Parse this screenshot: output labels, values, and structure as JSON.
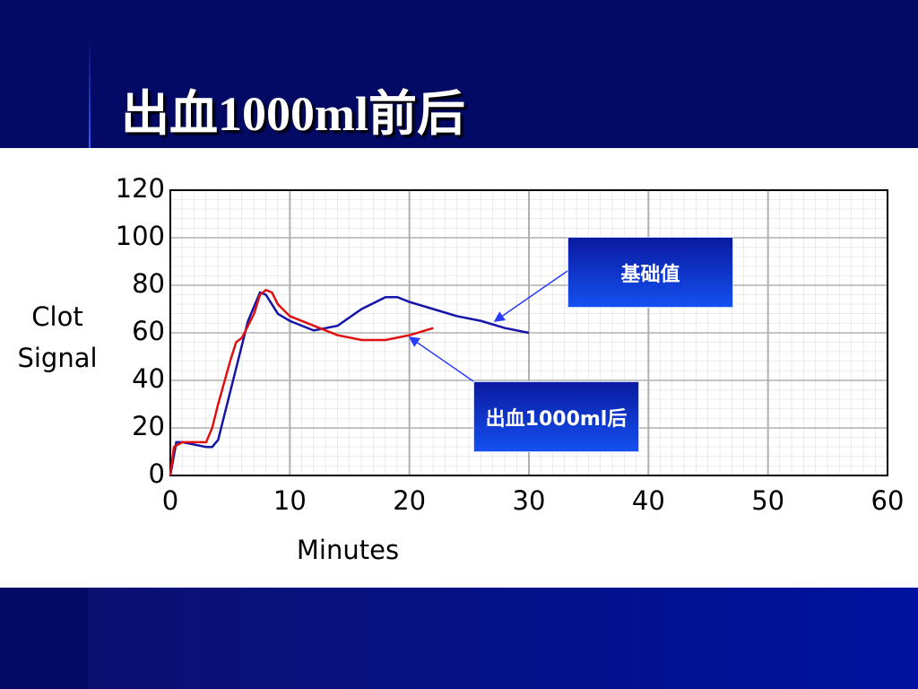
{
  "chart_data": {
    "type": "line",
    "title": "出血1000ml前后",
    "xlabel": "Minutes",
    "ylabel": "Clot Signal",
    "xlim": [
      0,
      60
    ],
    "xticks": [
      0,
      10,
      20,
      30,
      40,
      50,
      60
    ],
    "ylim": [
      0,
      120
    ],
    "yticks": [
      0,
      20,
      40,
      60,
      80,
      100,
      120
    ],
    "grid": true,
    "series": [
      {
        "name": "基础值",
        "color": "#1414a8",
        "x": [
          0,
          0.5,
          1,
          2,
          3,
          3.5,
          4,
          4.5,
          5.5,
          6.5,
          7.5,
          8,
          9,
          10,
          12,
          14,
          16,
          18,
          19,
          20,
          22,
          24,
          26,
          28,
          30
        ],
        "values": [
          0,
          14,
          14,
          13,
          12,
          12,
          15,
          25,
          45,
          65,
          77,
          76,
          68,
          65,
          61,
          63,
          70,
          75,
          75,
          73,
          70,
          67,
          65,
          62,
          60
        ]
      },
      {
        "name": "出血1000ml后",
        "color": "#e01010",
        "x": [
          0,
          0.3,
          1,
          2,
          3,
          3.5,
          4,
          5,
          5.5,
          6,
          7,
          7.5,
          8,
          8.5,
          9,
          10,
          12,
          14,
          16,
          18,
          20,
          22
        ],
        "values": [
          0,
          12,
          14,
          14,
          14,
          20,
          30,
          48,
          56,
          58,
          68,
          76,
          78,
          77,
          72,
          67,
          63,
          59,
          57,
          57,
          59,
          62
        ]
      }
    ]
  }
}
